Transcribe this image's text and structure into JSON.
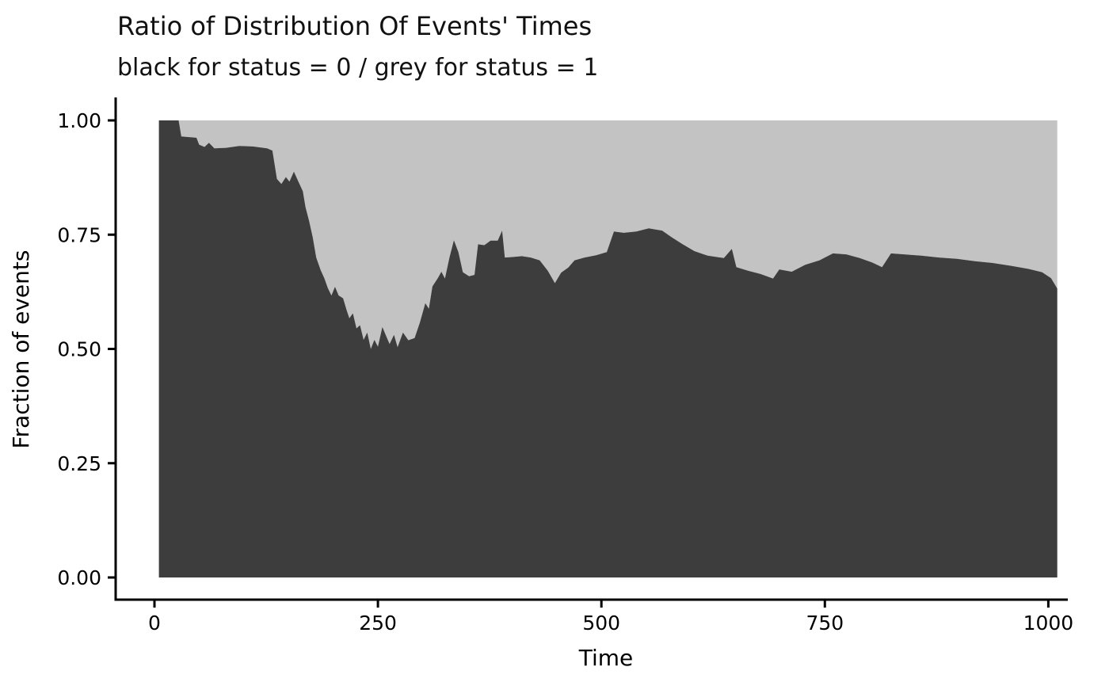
{
  "chart_data": {
    "type": "area",
    "title": "Ratio of Distribution Of Events' Times",
    "subtitle": "black for status = 0 / grey for status = 1",
    "xlabel": "Time",
    "ylabel": "Fraction of events",
    "xlim": [
      -45,
      1065
    ],
    "ylim": [
      -0.05,
      1.05
    ],
    "grid": false,
    "legend_position": "none",
    "x_ticks": {
      "values": [
        0,
        250,
        500,
        750,
        1000
      ],
      "labels": [
        "0",
        "250",
        "500",
        "750",
        "1000"
      ]
    },
    "y_ticks": {
      "values": [
        0,
        0.25,
        0.5,
        0.75,
        1
      ],
      "labels": [
        "0.00",
        "0.25",
        "0.50",
        "0.75",
        "1.00"
      ]
    },
    "colors": {
      "status0": "#3d3d3d",
      "status1": "#c3c3c3",
      "axis": "#000000",
      "background": "#ffffff"
    },
    "series": [
      {
        "name": "status = 0",
        "description": "dark area: fraction of events with status = 0, filled from 0 up to the boundary points [time, fraction]",
        "color": "#3d3d3d",
        "points": [
          [
            5,
            1.0
          ],
          [
            27,
            1.0
          ],
          [
            30,
            0.965
          ],
          [
            47,
            0.962
          ],
          [
            50,
            0.947
          ],
          [
            56,
            0.942
          ],
          [
            61,
            0.951
          ],
          [
            67,
            0.939
          ],
          [
            80,
            0.94
          ],
          [
            95,
            0.944
          ],
          [
            110,
            0.943
          ],
          [
            126,
            0.939
          ],
          [
            132,
            0.934
          ],
          [
            137,
            0.872
          ],
          [
            142,
            0.861
          ],
          [
            147,
            0.876
          ],
          [
            151,
            0.866
          ],
          [
            156,
            0.888
          ],
          [
            161,
            0.866
          ],
          [
            166,
            0.845
          ],
          [
            169,
            0.81
          ],
          [
            173,
            0.78
          ],
          [
            177,
            0.745
          ],
          [
            181,
            0.7
          ],
          [
            186,
            0.672
          ],
          [
            190,
            0.655
          ],
          [
            194,
            0.633
          ],
          [
            198,
            0.617
          ],
          [
            202,
            0.636
          ],
          [
            206,
            0.617
          ],
          [
            211,
            0.611
          ],
          [
            215,
            0.585
          ],
          [
            218,
            0.567
          ],
          [
            222,
            0.578
          ],
          [
            226,
            0.545
          ],
          [
            230,
            0.552
          ],
          [
            234,
            0.52
          ],
          [
            238,
            0.536
          ],
          [
            242,
            0.5
          ],
          [
            246,
            0.52
          ],
          [
            250,
            0.505
          ],
          [
            255,
            0.548
          ],
          [
            259,
            0.529
          ],
          [
            263,
            0.511
          ],
          [
            268,
            0.531
          ],
          [
            272,
            0.504
          ],
          [
            278,
            0.536
          ],
          [
            284,
            0.519
          ],
          [
            291,
            0.524
          ],
          [
            297,
            0.558
          ],
          [
            303,
            0.6
          ],
          [
            307,
            0.588
          ],
          [
            311,
            0.637
          ],
          [
            317,
            0.655
          ],
          [
            321,
            0.669
          ],
          [
            325,
            0.654
          ],
          [
            330,
            0.7
          ],
          [
            335,
            0.738
          ],
          [
            340,
            0.712
          ],
          [
            345,
            0.668
          ],
          [
            352,
            0.659
          ],
          [
            358,
            0.662
          ],
          [
            362,
            0.729
          ],
          [
            369,
            0.727
          ],
          [
            376,
            0.737
          ],
          [
            384,
            0.737
          ],
          [
            389,
            0.759
          ],
          [
            392,
            0.7
          ],
          [
            400,
            0.701
          ],
          [
            411,
            0.703
          ],
          [
            421,
            0.7
          ],
          [
            431,
            0.694
          ],
          [
            440,
            0.671
          ],
          [
            448,
            0.644
          ],
          [
            455,
            0.667
          ],
          [
            463,
            0.678
          ],
          [
            470,
            0.694
          ],
          [
            481,
            0.7
          ],
          [
            494,
            0.705
          ],
          [
            506,
            0.712
          ],
          [
            514,
            0.757
          ],
          [
            525,
            0.754
          ],
          [
            539,
            0.757
          ],
          [
            553,
            0.764
          ],
          [
            568,
            0.759
          ],
          [
            579,
            0.744
          ],
          [
            591,
            0.729
          ],
          [
            604,
            0.714
          ],
          [
            619,
            0.704
          ],
          [
            637,
            0.699
          ],
          [
            646,
            0.719
          ],
          [
            651,
            0.679
          ],
          [
            664,
            0.671
          ],
          [
            678,
            0.664
          ],
          [
            692,
            0.654
          ],
          [
            699,
            0.674
          ],
          [
            713,
            0.669
          ],
          [
            728,
            0.684
          ],
          [
            744,
            0.694
          ],
          [
            759,
            0.709
          ],
          [
            774,
            0.707
          ],
          [
            789,
            0.699
          ],
          [
            803,
            0.689
          ],
          [
            814,
            0.679
          ],
          [
            824,
            0.709
          ],
          [
            839,
            0.707
          ],
          [
            858,
            0.704
          ],
          [
            878,
            0.7
          ],
          [
            898,
            0.697
          ],
          [
            918,
            0.692
          ],
          [
            938,
            0.688
          ],
          [
            958,
            0.682
          ],
          [
            978,
            0.675
          ],
          [
            993,
            0.668
          ],
          [
            1003,
            0.655
          ],
          [
            1010,
            0.632
          ]
        ]
      },
      {
        "name": "status = 1",
        "description": "grey area: fraction of events with status = 1, filled from the boundary up to 1.0",
        "color": "#c3c3c3"
      }
    ]
  }
}
